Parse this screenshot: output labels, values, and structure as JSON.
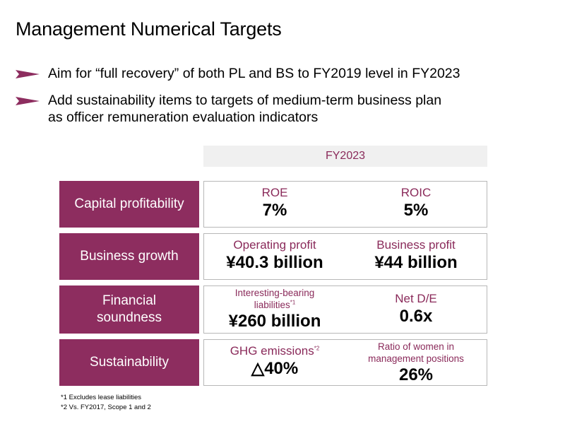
{
  "title": "Management Numerical Targets",
  "bullets": [
    "Aim for “full recovery” of both PL and BS to FY2019 level in FY2023",
    "Add sustainability items to targets of medium-term business plan",
    "as officer remuneration evaluation indicators"
  ],
  "column_header": "FY2023",
  "rows": [
    {
      "label": "Capital profitability",
      "metrics": [
        {
          "label": "ROE",
          "value": "7%"
        },
        {
          "label": "ROIC",
          "value": "5%"
        }
      ]
    },
    {
      "label": "Business growth",
      "metrics": [
        {
          "label": "Operating profit",
          "value": "¥40.3 billion"
        },
        {
          "label": "Business profit",
          "value": "¥44 billion"
        }
      ]
    },
    {
      "label_line1": "Financial",
      "label_line2": "soundness",
      "metrics": [
        {
          "label_line1": "Interesting-bearing",
          "label_line2": "liabilities",
          "note": "*1",
          "value": "¥260 billion"
        },
        {
          "label": "Net D/E",
          "value": "0.6x"
        }
      ]
    },
    {
      "label": "Sustainability",
      "metrics": [
        {
          "label": "GHG emissions",
          "note": "*2",
          "value": "△40%"
        },
        {
          "label_line1": "Ratio of women in",
          "label_line2": "management positions",
          "value": "26%"
        }
      ]
    }
  ],
  "footnotes": [
    "*1 Excludes lease liabilities",
    "*2 Vs. FY2017, Scope 1 and 2"
  ],
  "colors": {
    "accent": "#8d2d5f",
    "header_bg": "#f0f0f0",
    "border": "#b8b8b8"
  }
}
